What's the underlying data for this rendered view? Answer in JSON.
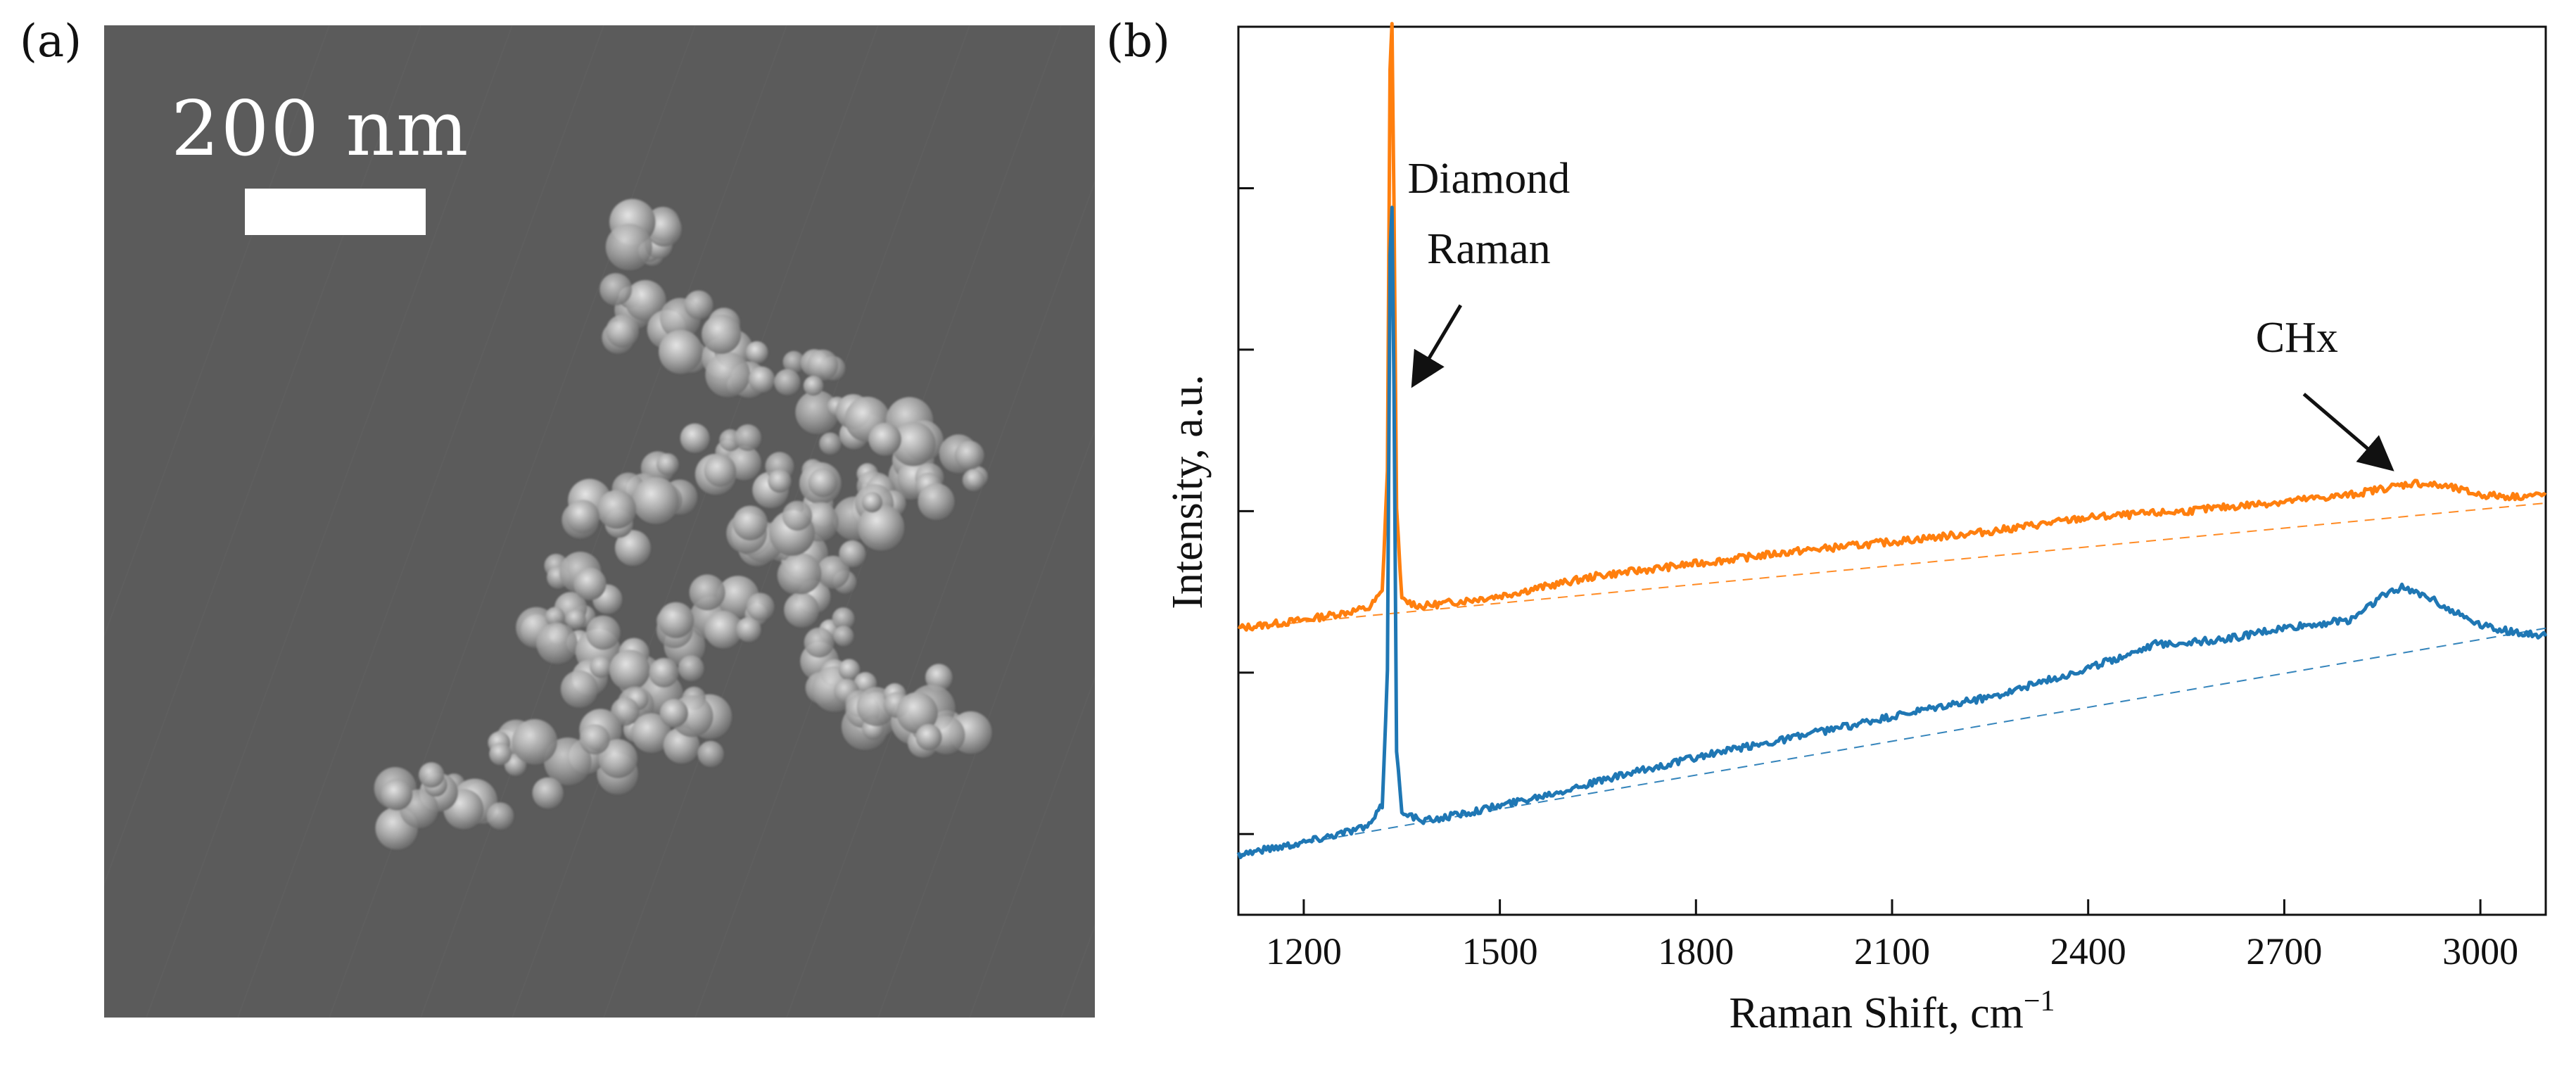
{
  "panels": {
    "a_label": "(a)",
    "b_label": "(b)"
  },
  "sem_image": {
    "scale_bar_label": "200 nm",
    "background_color": "#5b5b5b",
    "particle_color": "#bdbdbd"
  },
  "chart_data": {
    "type": "line",
    "xlabel": "Raman Shift, cm",
    "xlabel_superscript": "−1",
    "ylabel": "Intensity, a.u.",
    "xlim": [
      1100,
      3100
    ],
    "ylim": [
      0,
      11
    ],
    "x_ticks": [
      1200,
      1500,
      1800,
      2100,
      2400,
      2700,
      3000
    ],
    "y_ticks": [
      1,
      3,
      5,
      7,
      9
    ],
    "y_tick_labels_shown": false,
    "grid": false,
    "colors": {
      "orange": "#ff7f0e",
      "blue": "#1f77b4"
    },
    "series": [
      {
        "color": "orange",
        "x": [
          1100,
          1200,
          1300,
          1320,
          1328,
          1332,
          1335,
          1338,
          1342,
          1350,
          1380,
          1500,
          1650,
          1800,
          1950,
          2100,
          2250,
          2400,
          2550,
          2700,
          2800,
          2850,
          2900,
          2950,
          3000,
          3050,
          3100
        ],
        "y": [
          3.55,
          3.65,
          3.8,
          4.0,
          5.5,
          10.5,
          11.0,
          8.8,
          5.0,
          3.9,
          3.82,
          3.95,
          4.2,
          4.35,
          4.5,
          4.62,
          4.75,
          4.92,
          5.0,
          5.12,
          5.2,
          5.28,
          5.35,
          5.3,
          5.2,
          5.18,
          5.2
        ],
        "baseline_x": [
          1100,
          3100
        ],
        "baseline_y": [
          3.55,
          5.1
        ]
      },
      {
        "color": "blue",
        "x": [
          1100,
          1200,
          1300,
          1320,
          1328,
          1332,
          1335,
          1338,
          1342,
          1350,
          1380,
          1500,
          1650,
          1800,
          1950,
          2100,
          2250,
          2400,
          2500,
          2600,
          2700,
          2800,
          2850,
          2880,
          2920,
          2960,
          3000,
          3050,
          3100
        ],
        "y": [
          0.75,
          0.9,
          1.1,
          1.35,
          3.0,
          8.2,
          8.8,
          6.5,
          2.0,
          1.3,
          1.15,
          1.35,
          1.65,
          1.95,
          2.2,
          2.45,
          2.7,
          3.05,
          3.35,
          3.4,
          3.55,
          3.65,
          3.95,
          4.05,
          3.95,
          3.75,
          3.6,
          3.5,
          3.45
        ],
        "baseline_x": [
          1100,
          3100
        ],
        "baseline_y": [
          0.75,
          3.55
        ]
      }
    ],
    "annotations": [
      {
        "text_lines": [
          "Diamond",
          "Raman"
        ],
        "arrow_from": [
          1440,
          7.55
        ],
        "arrow_to": [
          1370,
          6.6
        ]
      },
      {
        "text_lines": [
          "CHx"
        ],
        "arrow_from": [
          2730,
          6.45
        ],
        "arrow_to": [
          2860,
          5.55
        ]
      }
    ]
  }
}
